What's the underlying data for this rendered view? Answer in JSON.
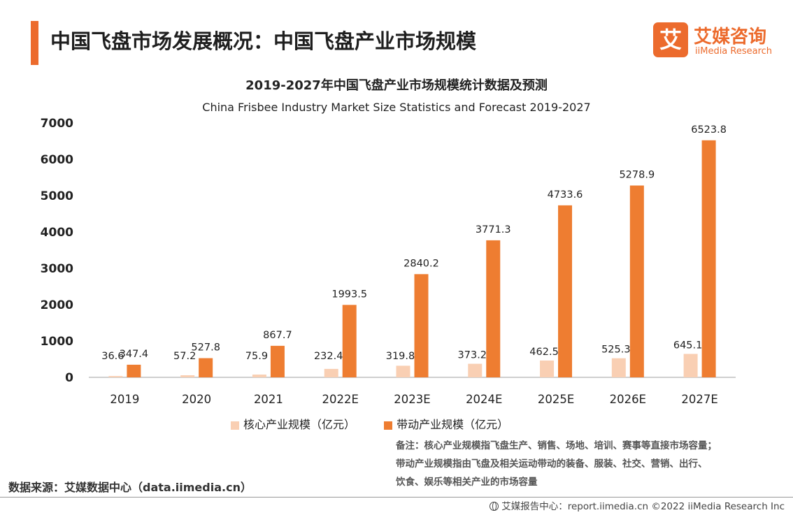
{
  "header": {
    "title": "中国飞盘市场发展概况：中国飞盘产业市场规模",
    "accent_color": "#ec6b2d"
  },
  "logo": {
    "mark": "艾",
    "name_cn": "艾媒咨询",
    "name_en": "iiMedia Research"
  },
  "chart_data": {
    "type": "bar",
    "title": "2019-2027年中国飞盘产业市场规模统计数据及预测",
    "subtitle": "China Frisbee Industry Market Size Statistics and Forecast 2019-2027",
    "categories": [
      "2019",
      "2020",
      "2021",
      "2022E",
      "2023E",
      "2024E",
      "2025E",
      "2026E",
      "2027E"
    ],
    "series": [
      {
        "name": "核心产业规模（亿元）",
        "color": "#f9cfb3",
        "values": [
          36.6,
          57.2,
          75.9,
          232.4,
          319.8,
          373.2,
          462.5,
          525.3,
          645.1
        ],
        "labels": [
          "36.6",
          "57.2",
          "75.9",
          "232.4",
          "319.8",
          "373.2",
          "462.5",
          "525.3",
          "645.1"
        ]
      },
      {
        "name": "带动产业规模（亿元）",
        "color": "#ee7d31",
        "values": [
          347.4,
          527.8,
          867.7,
          1993.5,
          2840.2,
          3771.3,
          4733.6,
          5278.9,
          6523.8
        ],
        "labels": [
          "347.4",
          "527.8",
          "867.7",
          "1993.5",
          "2840.2",
          "3771.3",
          "4733.6",
          "5278.9",
          "6523.8"
        ]
      }
    ],
    "ylim": [
      0,
      7000
    ],
    "yticks": [
      "0",
      "1000",
      "2000",
      "3000",
      "4000",
      "5000",
      "6000",
      "7000"
    ],
    "ytick_values": [
      0,
      1000,
      2000,
      3000,
      4000,
      5000,
      6000,
      7000
    ],
    "grid": false,
    "legend": "bottom-center"
  },
  "note": {
    "lines": [
      "备注：核心产业规模指飞盘生产、销售、场地、培训、赛事等直接市场容量；",
      "带动产业规模指由飞盘及相关运动带动的装备、服装、社交、营销、出行、",
      "饮食、娱乐等相关产业的市场容量"
    ]
  },
  "source": "数据来源：艾媒数据中心（data.iimedia.cn）",
  "footer": "艾媒报告中心：report.iimedia.cn  ©2022  iiMedia Research  Inc"
}
